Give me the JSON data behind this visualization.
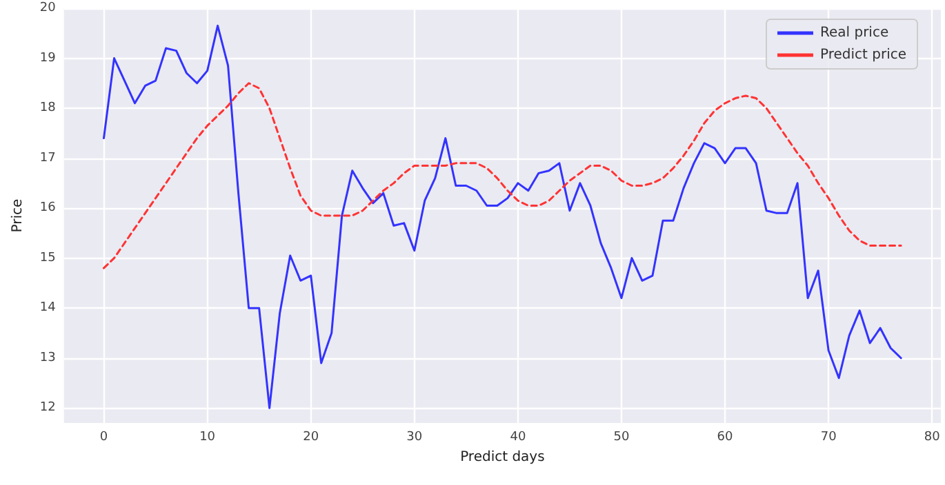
{
  "chart_data": {
    "type": "line",
    "xlabel": "Predict days",
    "ylabel": "Price",
    "x": [
      0,
      1,
      2,
      3,
      4,
      5,
      6,
      7,
      8,
      9,
      10,
      11,
      12,
      13,
      14,
      15,
      16,
      17,
      18,
      19,
      20,
      21,
      22,
      23,
      24,
      25,
      26,
      27,
      28,
      29,
      30,
      31,
      32,
      33,
      34,
      35,
      36,
      37,
      38,
      39,
      40,
      41,
      42,
      43,
      44,
      45,
      46,
      47,
      48,
      49,
      50,
      51,
      52,
      53,
      54,
      55,
      56,
      57,
      58,
      59,
      60,
      61,
      62,
      63,
      64,
      65,
      66,
      67,
      68,
      69,
      70,
      71,
      72,
      73,
      74,
      75,
      76,
      77
    ],
    "series": [
      {
        "name": "Real price",
        "color": "#3333ff",
        "line_style": "solid",
        "values": [
          17.4,
          19.0,
          18.55,
          18.1,
          18.45,
          18.55,
          19.2,
          19.15,
          18.7,
          18.5,
          18.75,
          19.65,
          18.85,
          16.3,
          14.0,
          14.0,
          12.0,
          13.9,
          15.05,
          14.55,
          14.65,
          12.9,
          13.5,
          15.85,
          16.75,
          16.4,
          16.1,
          16.3,
          15.65,
          15.7,
          15.15,
          16.15,
          16.6,
          17.4,
          16.45,
          16.45,
          16.35,
          16.05,
          16.05,
          16.2,
          16.5,
          16.35,
          16.7,
          16.75,
          16.9,
          15.95,
          16.5,
          16.05,
          15.3,
          14.8,
          14.2,
          15.0,
          14.55,
          14.65,
          15.75,
          15.75,
          16.4,
          16.9,
          17.3,
          17.2,
          16.9,
          17.2,
          17.2,
          16.9,
          15.95,
          15.9,
          15.9,
          16.5,
          14.2,
          14.75,
          13.15,
          12.6,
          13.45,
          13.95,
          13.3,
          13.6,
          13.2,
          13.0
        ]
      },
      {
        "name": "Predict price",
        "color": "#ff3333",
        "line_style": "dashed",
        "values": [
          14.8,
          15.0,
          15.3,
          15.6,
          15.9,
          16.2,
          16.5,
          16.8,
          17.1,
          17.4,
          17.65,
          17.85,
          18.05,
          18.3,
          18.5,
          18.4,
          18.0,
          17.4,
          16.8,
          16.25,
          15.95,
          15.85,
          15.85,
          15.85,
          15.85,
          15.95,
          16.15,
          16.35,
          16.5,
          16.7,
          16.85,
          16.85,
          16.85,
          16.85,
          16.9,
          16.9,
          16.9,
          16.8,
          16.6,
          16.35,
          16.15,
          16.05,
          16.05,
          16.15,
          16.35,
          16.55,
          16.7,
          16.85,
          16.85,
          16.75,
          16.55,
          16.45,
          16.45,
          16.5,
          16.6,
          16.8,
          17.05,
          17.35,
          17.7,
          17.95,
          18.1,
          18.2,
          18.25,
          18.2,
          18.0,
          17.7,
          17.4,
          17.1,
          16.85,
          16.5,
          16.2,
          15.85,
          15.55,
          15.35,
          15.25,
          15.25,
          15.25,
          15.25
        ]
      }
    ],
    "xlim": [
      -3.85,
      80.85
    ],
    "xticks": [
      0,
      10,
      20,
      30,
      40,
      50,
      60,
      70,
      80
    ],
    "ylim": [
      11.7,
      20
    ],
    "yticks": [
      12,
      13,
      14,
      15,
      16,
      17,
      18,
      19,
      20
    ],
    "grid": true,
    "legend": "top right",
    "marker": "none"
  }
}
